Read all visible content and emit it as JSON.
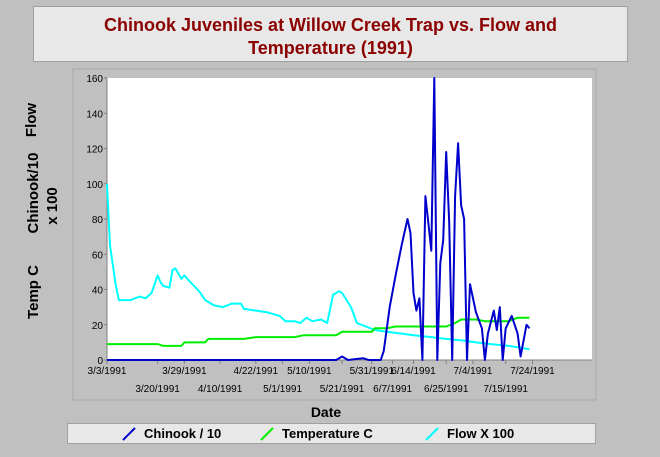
{
  "title_line1": "Chinook Juveniles at Willow Creek Trap vs. Flow and",
  "title_line2": "Temperature (1991)",
  "ylabel_flow": "Flow",
  "ylabel_chinook_line1": "Chinook/10",
  "ylabel_chinook_line2": "x 100",
  "ylabel_temp": "Temp C",
  "chart_data": {
    "type": "line",
    "title": "Chinook Juveniles at Willow Creek Trap vs. Flow and Temperature (1991)",
    "xlabel": "Date",
    "ylabel": "Flow / Chinook/10 x 100 / Temp C",
    "ylim": [
      0,
      160
    ],
    "yticks": [
      0,
      20,
      40,
      60,
      80,
      100,
      120,
      140,
      160
    ],
    "xlim": [
      "3/3/1991",
      "8/13/1991"
    ],
    "xticks_upper": [
      "3/3/1991",
      "3/29/1991",
      "4/22/1991",
      "5/10/1991",
      "5/31/1991",
      "6/14/1991",
      "7/4/1991",
      "7/24/1991"
    ],
    "xticks_lower": [
      "3/20/1991",
      "4/10/1991",
      "5/1/1991",
      "5/21/1991",
      "6/7/1991",
      "6/25/1991",
      "7/15/1991"
    ],
    "grid": false,
    "legend_position": "bottom",
    "series": [
      {
        "name": "Chinook / 10",
        "color": "#0000cc",
        "points": [
          [
            "3/3/1991",
            0
          ],
          [
            "5/19/1991",
            0
          ],
          [
            "5/21/1991",
            2
          ],
          [
            "5/23/1991",
            0
          ],
          [
            "5/28/1991",
            1
          ],
          [
            "5/30/1991",
            0
          ],
          [
            "6/3/1991",
            0
          ],
          [
            "6/4/1991",
            5
          ],
          [
            "6/6/1991",
            30
          ],
          [
            "6/8/1991",
            48
          ],
          [
            "6/10/1991",
            65
          ],
          [
            "6/12/1991",
            80
          ],
          [
            "6/13/1991",
            72
          ],
          [
            "6/14/1991",
            38
          ],
          [
            "6/15/1991",
            28
          ],
          [
            "6/16/1991",
            35
          ],
          [
            "6/17/1991",
            0
          ],
          [
            "6/18/1991",
            93
          ],
          [
            "6/19/1991",
            78
          ],
          [
            "6/20/1991",
            62
          ],
          [
            "6/21/1991",
            160
          ],
          [
            "6/22/1991",
            0
          ],
          [
            "6/23/1991",
            55
          ],
          [
            "6/24/1991",
            68
          ],
          [
            "6/25/1991",
            118
          ],
          [
            "6/26/1991",
            78
          ],
          [
            "6/27/1991",
            0
          ],
          [
            "6/28/1991",
            93
          ],
          [
            "6/29/1991",
            123
          ],
          [
            "6/30/1991",
            88
          ],
          [
            "7/1/1991",
            80
          ],
          [
            "7/2/1991",
            0
          ],
          [
            "7/3/1991",
            43
          ],
          [
            "7/4/1991",
            35
          ],
          [
            "7/5/1991",
            27
          ],
          [
            "7/7/1991",
            18
          ],
          [
            "7/8/1991",
            0
          ],
          [
            "7/9/1991",
            15
          ],
          [
            "7/11/1991",
            28
          ],
          [
            "7/12/1991",
            17
          ],
          [
            "7/13/1991",
            30
          ],
          [
            "7/14/1991",
            0
          ],
          [
            "7/15/1991",
            18
          ],
          [
            "7/17/1991",
            25
          ],
          [
            "7/19/1991",
            15
          ],
          [
            "7/20/1991",
            2
          ],
          [
            "7/22/1991",
            20
          ],
          [
            "7/23/1991",
            18
          ]
        ]
      },
      {
        "name": "Temperature C",
        "color": "#00ee00",
        "points": [
          [
            "3/3/1991",
            9
          ],
          [
            "3/20/1991",
            9
          ],
          [
            "3/22/1991",
            8
          ],
          [
            "3/28/1991",
            8
          ],
          [
            "3/29/1991",
            10
          ],
          [
            "4/5/1991",
            10
          ],
          [
            "4/6/1991",
            12
          ],
          [
            "4/18/1991",
            12
          ],
          [
            "4/22/1991",
            13
          ],
          [
            "5/5/1991",
            13
          ],
          [
            "5/8/1991",
            14
          ],
          [
            "5/19/1991",
            14
          ],
          [
            "5/21/1991",
            16
          ],
          [
            "5/31/1991",
            16
          ],
          [
            "6/1/1991",
            18
          ],
          [
            "6/5/1991",
            18
          ],
          [
            "6/8/1991",
            19
          ],
          [
            "6/25/1991",
            19
          ],
          [
            "6/28/1991",
            21
          ],
          [
            "6/30/1991",
            23
          ],
          [
            "7/5/1991",
            23
          ],
          [
            "7/8/1991",
            22
          ],
          [
            "7/16/1991",
            22
          ],
          [
            "7/19/1991",
            24
          ],
          [
            "7/23/1991",
            24
          ]
        ]
      },
      {
        "name": "Flow X 100",
        "color": "#00ffff",
        "points": [
          [
            "3/3/1991",
            100
          ],
          [
            "3/4/1991",
            65
          ],
          [
            "3/6/1991",
            42
          ],
          [
            "3/7/1991",
            34
          ],
          [
            "3/11/1991",
            34
          ],
          [
            "3/14/1991",
            36
          ],
          [
            "3/16/1991",
            35
          ],
          [
            "3/18/1991",
            38
          ],
          [
            "3/20/1991",
            48
          ],
          [
            "3/21/1991",
            44
          ],
          [
            "3/22/1991",
            42
          ],
          [
            "3/24/1991",
            41
          ],
          [
            "3/25/1991",
            51
          ],
          [
            "3/26/1991",
            52
          ],
          [
            "3/28/1991",
            46
          ],
          [
            "3/29/1991",
            48
          ],
          [
            "3/30/1991",
            46
          ],
          [
            "4/3/1991",
            39
          ],
          [
            "4/5/1991",
            34
          ],
          [
            "4/8/1991",
            31
          ],
          [
            "4/11/1991",
            30
          ],
          [
            "4/14/1991",
            32
          ],
          [
            "4/17/1991",
            32
          ],
          [
            "4/18/1991",
            29
          ],
          [
            "4/22/1991",
            28
          ],
          [
            "4/26/1991",
            27
          ],
          [
            "4/30/1991",
            25
          ],
          [
            "5/2/1991",
            22
          ],
          [
            "5/5/1991",
            22
          ],
          [
            "5/7/1991",
            21
          ],
          [
            "5/9/1991",
            24
          ],
          [
            "5/11/1991",
            22
          ],
          [
            "5/14/1991",
            23
          ],
          [
            "5/16/1991",
            21
          ],
          [
            "5/18/1991",
            37
          ],
          [
            "5/20/1991",
            39
          ],
          [
            "5/21/1991",
            38
          ],
          [
            "5/24/1991",
            30
          ],
          [
            "5/26/1991",
            21
          ],
          [
            "6/1/1991",
            17
          ],
          [
            "6/5/1991",
            16
          ],
          [
            "6/10/1991",
            15
          ],
          [
            "6/14/1991",
            14
          ],
          [
            "6/20/1991",
            13
          ],
          [
            "6/25/1991",
            12
          ],
          [
            "7/1/1991",
            11
          ],
          [
            "7/5/1991",
            10
          ],
          [
            "7/10/1991",
            9
          ],
          [
            "7/16/1991",
            8
          ],
          [
            "7/20/1991",
            7
          ],
          [
            "7/23/1991",
            6
          ]
        ]
      }
    ]
  }
}
